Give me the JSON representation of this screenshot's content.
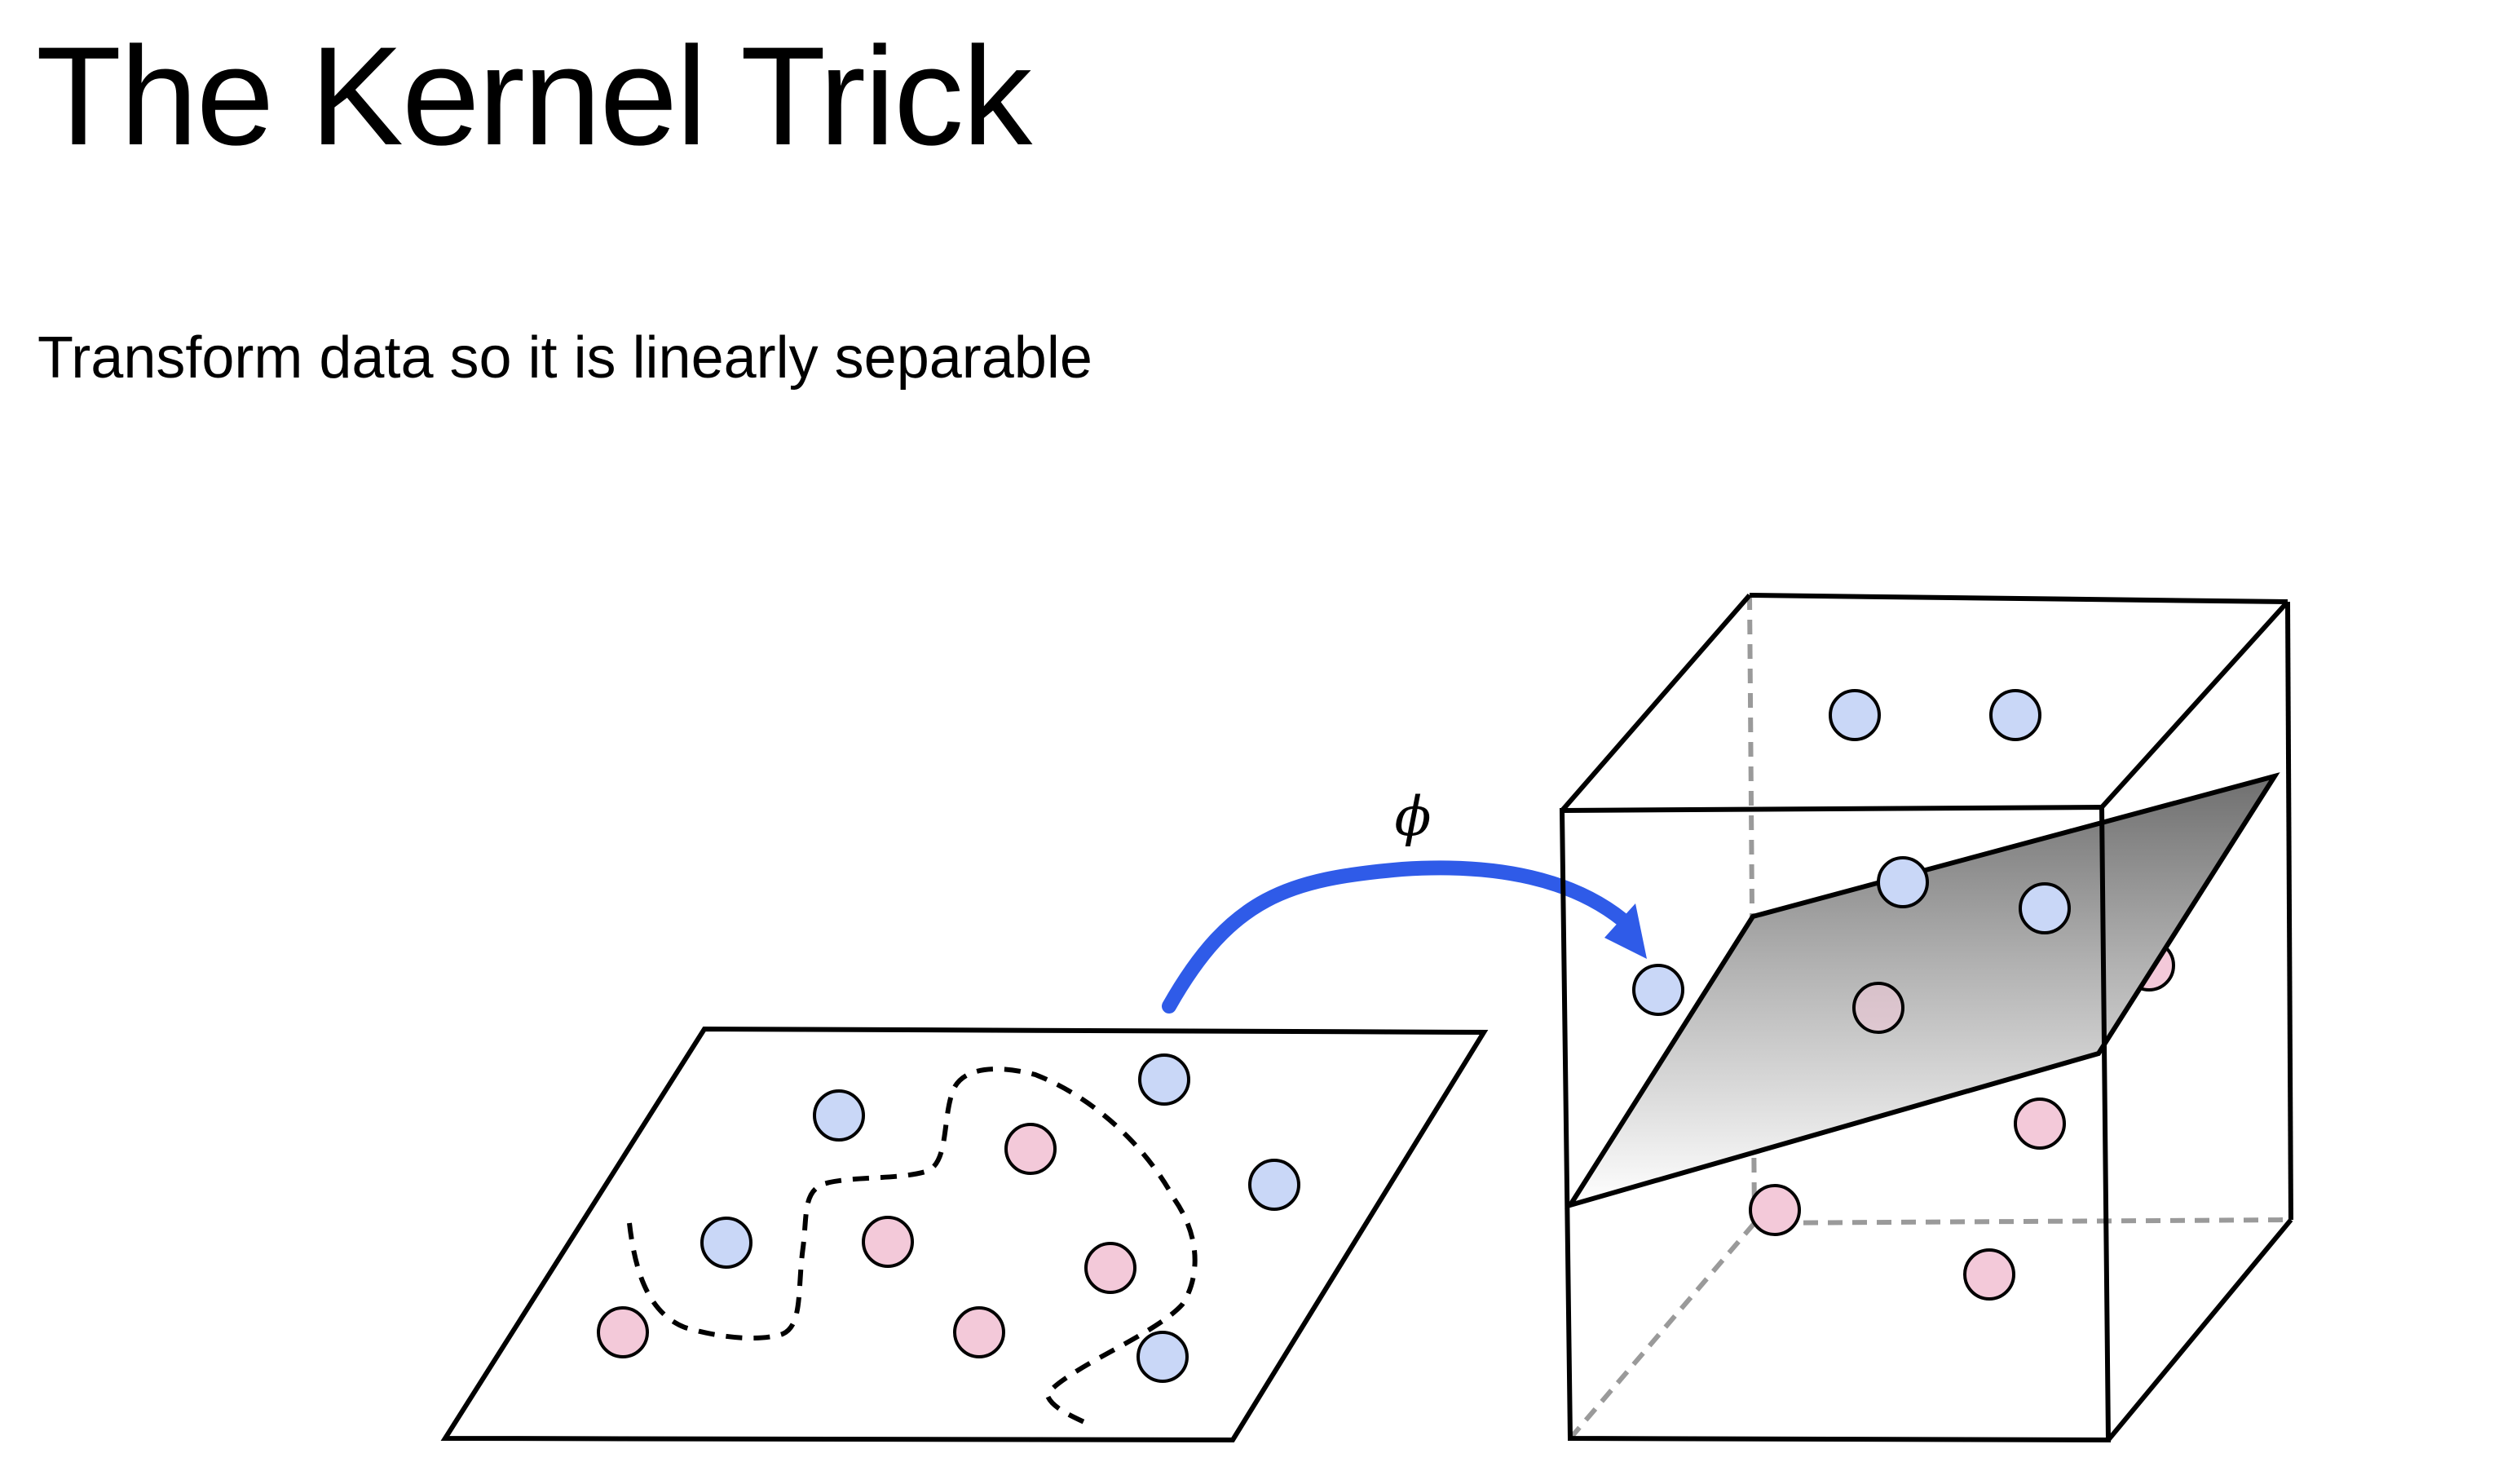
{
  "slide": {
    "title": "The Kernel Trick",
    "subtitle": "Transform data so it is linearly separable"
  },
  "diagram": {
    "mapping_label": "ϕ",
    "input_space": {
      "point_classes": [
        "blue",
        "pink"
      ],
      "boundary": "dashed-curve"
    },
    "feature_space": {
      "separator": "hyperplane"
    },
    "colors": {
      "blue_point": "#c9d7f7",
      "pink_point": "#f3c9d9",
      "arrow": "#2f5be8",
      "outline": "#000000",
      "hidden_edge": "#9a9a9a"
    }
  }
}
